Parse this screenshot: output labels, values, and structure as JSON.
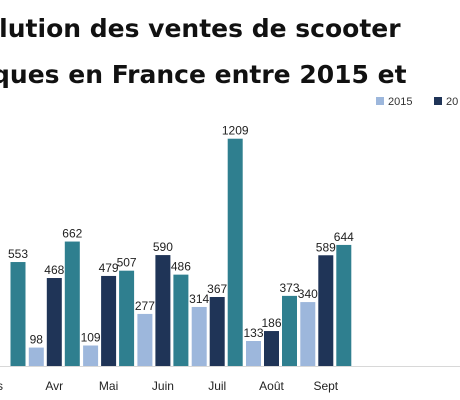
{
  "title_line1": "olution des ventes de scooter",
  "title_line2": "ques en France entre 2015 et",
  "chart_data": {
    "type": "bar",
    "categories": [
      "s",
      "Avr",
      "Mai",
      "Juin",
      "Juil",
      "Août",
      "Sept"
    ],
    "ylim": [
      0,
      1300
    ],
    "grid": false,
    "legend_position": "top-right",
    "series": [
      {
        "name": "2015",
        "color": "#9db7dc",
        "values": [
          null,
          98,
          109,
          277,
          314,
          133,
          340
        ]
      },
      {
        "name": "20",
        "color": "#1f3457",
        "values": [
          null,
          468,
          479,
          590,
          367,
          186,
          589
        ]
      },
      {
        "name": "",
        "color": "#2f7f8f",
        "values": [
          553,
          662,
          507,
          486,
          1209,
          373,
          644
        ]
      }
    ],
    "data_labels": [
      [
        "",
        "98",
        "109",
        "277",
        "314",
        "133",
        "340"
      ],
      [
        "",
        "468",
        "479",
        "590",
        "367",
        "186",
        "589"
      ],
      [
        "553",
        "662",
        "507",
        "486",
        "1209",
        "373",
        "644"
      ]
    ]
  }
}
